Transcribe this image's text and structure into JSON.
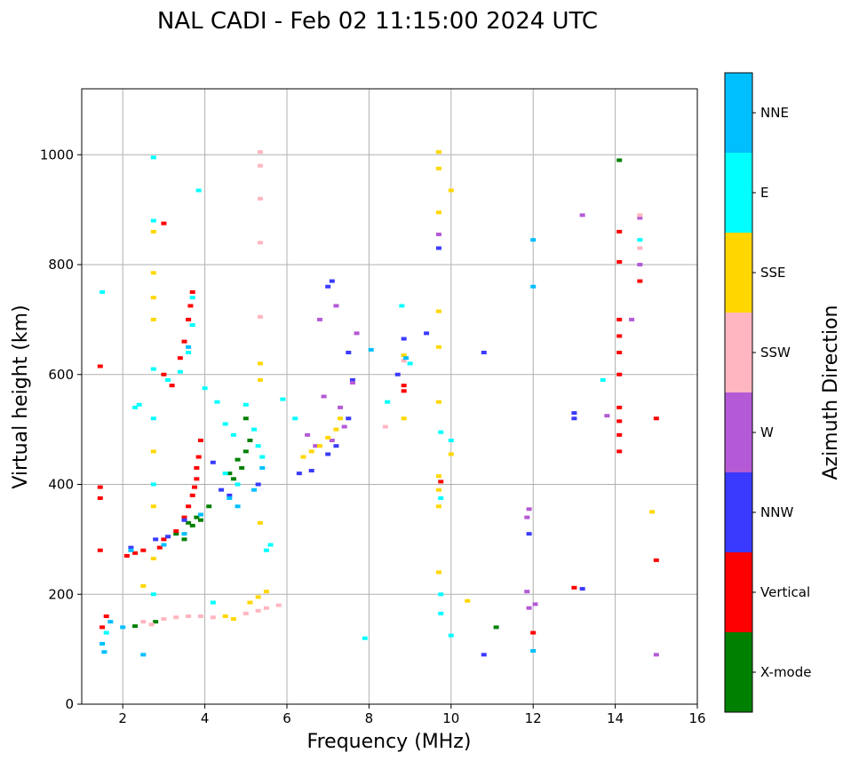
{
  "chart_data": {
    "type": "scatter",
    "title": "NAL CADI - Feb 02 11:15:00 2024 UTC",
    "xlabel": "Frequency (MHz)",
    "ylabel": "Virtual height (km)",
    "xlim": [
      1,
      16
    ],
    "ylim": [
      0,
      1120
    ],
    "xticks": [
      2,
      4,
      6,
      8,
      10,
      12,
      14,
      16
    ],
    "yticks": [
      0,
      200,
      400,
      600,
      800,
      1000
    ],
    "grid": true,
    "colorbar": {
      "label": "Azimuth Direction",
      "placement": "right",
      "categories": [
        {
          "name": "X-mode",
          "color": "#008000"
        },
        {
          "name": "Vertical",
          "color": "#ff0000"
        },
        {
          "name": "NNW",
          "color": "#3a3aff"
        },
        {
          "name": "W",
          "color": "#b45ad6"
        },
        {
          "name": "SSW",
          "color": "#ffb6c1"
        },
        {
          "name": "SSE",
          "color": "#ffd700"
        },
        {
          "name": "E",
          "color": "#00ffff"
        },
        {
          "name": "NNE",
          "color": "#00bfff"
        }
      ]
    },
    "series": [
      {
        "name": "X-mode",
        "points": [
          [
            3.6,
            330
          ],
          [
            3.7,
            325
          ],
          [
            3.8,
            340
          ],
          [
            3.9,
            335
          ],
          [
            4.1,
            360
          ],
          [
            4.6,
            420
          ],
          [
            4.7,
            410
          ],
          [
            4.8,
            445
          ],
          [
            4.9,
            430
          ],
          [
            5.0,
            460
          ],
          [
            5.1,
            480
          ],
          [
            5.0,
            520
          ],
          [
            2.8,
            150
          ],
          [
            2.3,
            142
          ],
          [
            3.5,
            300
          ],
          [
            3.3,
            310
          ],
          [
            11.1,
            140
          ],
          [
            14.1,
            990
          ]
        ]
      },
      {
        "name": "Vertical",
        "points": [
          [
            1.45,
            615
          ],
          [
            1.45,
            395
          ],
          [
            1.45,
            375
          ],
          [
            1.45,
            280
          ],
          [
            1.5,
            140
          ],
          [
            1.6,
            160
          ],
          [
            2.1,
            270
          ],
          [
            2.3,
            275
          ],
          [
            2.5,
            280
          ],
          [
            2.9,
            285
          ],
          [
            3.0,
            300
          ],
          [
            3.3,
            315
          ],
          [
            3.5,
            340
          ],
          [
            3.6,
            360
          ],
          [
            3.7,
            380
          ],
          [
            3.75,
            395
          ],
          [
            3.8,
            430
          ],
          [
            3.8,
            410
          ],
          [
            3.85,
            450
          ],
          [
            3.9,
            480
          ],
          [
            3.2,
            580
          ],
          [
            3.0,
            600
          ],
          [
            3.4,
            630
          ],
          [
            3.5,
            660
          ],
          [
            3.6,
            700
          ],
          [
            3.65,
            725
          ],
          [
            3.7,
            750
          ],
          [
            3.0,
            875
          ],
          [
            8.85,
            580
          ],
          [
            8.85,
            570
          ],
          [
            9.75,
            405
          ],
          [
            12.0,
            130
          ],
          [
            13.0,
            212
          ],
          [
            14.1,
            860
          ],
          [
            14.1,
            805
          ],
          [
            14.1,
            700
          ],
          [
            14.1,
            670
          ],
          [
            14.1,
            640
          ],
          [
            14.1,
            600
          ],
          [
            14.1,
            540
          ],
          [
            14.1,
            515
          ],
          [
            14.1,
            490
          ],
          [
            14.1,
            460
          ],
          [
            15.0,
            520
          ],
          [
            15.0,
            262
          ],
          [
            14.6,
            770
          ]
        ]
      },
      {
        "name": "NNW",
        "points": [
          [
            2.2,
            285
          ],
          [
            2.8,
            300
          ],
          [
            3.1,
            305
          ],
          [
            3.5,
            335
          ],
          [
            3.9,
            345
          ],
          [
            4.2,
            440
          ],
          [
            4.4,
            390
          ],
          [
            4.6,
            380
          ],
          [
            5.3,
            400
          ],
          [
            6.3,
            420
          ],
          [
            6.6,
            425
          ],
          [
            7.0,
            455
          ],
          [
            7.2,
            470
          ],
          [
            7.5,
            520
          ],
          [
            7.6,
            590
          ],
          [
            7.0,
            760
          ],
          [
            7.1,
            770
          ],
          [
            7.5,
            640
          ],
          [
            8.7,
            600
          ],
          [
            8.85,
            665
          ],
          [
            9.4,
            675
          ],
          [
            9.7,
            830
          ],
          [
            10.8,
            640
          ],
          [
            10.8,
            90
          ],
          [
            11.9,
            310
          ],
          [
            13.0,
            530
          ],
          [
            13.0,
            520
          ],
          [
            13.2,
            210
          ]
        ]
      },
      {
        "name": "W",
        "points": [
          [
            6.5,
            490
          ],
          [
            6.7,
            470
          ],
          [
            6.9,
            560
          ],
          [
            7.1,
            480
          ],
          [
            7.3,
            540
          ],
          [
            7.4,
            505
          ],
          [
            7.6,
            585
          ],
          [
            6.8,
            700
          ],
          [
            7.2,
            725
          ],
          [
            7.7,
            675
          ],
          [
            9.7,
            855
          ],
          [
            11.9,
            355
          ],
          [
            11.85,
            340
          ],
          [
            11.85,
            205
          ],
          [
            11.9,
            175
          ],
          [
            13.2,
            890
          ],
          [
            13.8,
            525
          ],
          [
            14.4,
            700
          ],
          [
            14.6,
            885
          ],
          [
            14.6,
            800
          ],
          [
            15.0,
            90
          ],
          [
            12.05,
            182
          ]
        ]
      },
      {
        "name": "SSW",
        "points": [
          [
            2.5,
            150
          ],
          [
            2.7,
            145
          ],
          [
            3.0,
            155
          ],
          [
            3.3,
            158
          ],
          [
            3.6,
            160
          ],
          [
            3.9,
            160
          ],
          [
            4.2,
            158
          ],
          [
            5.0,
            165
          ],
          [
            5.3,
            170
          ],
          [
            5.5,
            175
          ],
          [
            5.8,
            180
          ],
          [
            5.35,
            1005
          ],
          [
            5.35,
            980
          ],
          [
            5.35,
            920
          ],
          [
            5.35,
            840
          ],
          [
            5.35,
            705
          ],
          [
            8.4,
            505
          ],
          [
            8.85,
            625
          ],
          [
            14.6,
            890
          ],
          [
            14.6,
            830
          ]
        ]
      },
      {
        "name": "SSE",
        "points": [
          [
            2.5,
            215
          ],
          [
            2.75,
            860
          ],
          [
            2.75,
            785
          ],
          [
            2.75,
            740
          ],
          [
            2.75,
            700
          ],
          [
            2.75,
            460
          ],
          [
            2.75,
            360
          ],
          [
            2.75,
            265
          ],
          [
            4.5,
            160
          ],
          [
            4.7,
            155
          ],
          [
            5.1,
            185
          ],
          [
            5.3,
            195
          ],
          [
            5.5,
            205
          ],
          [
            5.35,
            620
          ],
          [
            5.35,
            590
          ],
          [
            5.35,
            330
          ],
          [
            6.4,
            450
          ],
          [
            6.6,
            460
          ],
          [
            6.8,
            470
          ],
          [
            7.0,
            485
          ],
          [
            7.2,
            500
          ],
          [
            7.3,
            520
          ],
          [
            8.85,
            520
          ],
          [
            8.85,
            635
          ],
          [
            9.7,
            1005
          ],
          [
            9.7,
            975
          ],
          [
            9.7,
            895
          ],
          [
            9.7,
            715
          ],
          [
            9.7,
            650
          ],
          [
            9.7,
            550
          ],
          [
            9.7,
            415
          ],
          [
            9.7,
            390
          ],
          [
            9.7,
            360
          ],
          [
            9.7,
            240
          ],
          [
            10.0,
            935
          ],
          [
            10.0,
            455
          ],
          [
            10.4,
            188
          ],
          [
            14.9,
            350
          ]
        ]
      },
      {
        "name": "E",
        "points": [
          [
            1.5,
            750
          ],
          [
            1.6,
            130
          ],
          [
            2.3,
            540
          ],
          [
            2.4,
            545
          ],
          [
            2.75,
            995
          ],
          [
            2.75,
            880
          ],
          [
            2.75,
            610
          ],
          [
            2.75,
            520
          ],
          [
            2.75,
            400
          ],
          [
            2.75,
            200
          ],
          [
            3.1,
            590
          ],
          [
            3.4,
            605
          ],
          [
            3.6,
            640
          ],
          [
            3.7,
            690
          ],
          [
            3.7,
            740
          ],
          [
            3.85,
            935
          ],
          [
            4.0,
            575
          ],
          [
            4.3,
            550
          ],
          [
            4.5,
            510
          ],
          [
            4.7,
            490
          ],
          [
            5.0,
            545
          ],
          [
            5.2,
            500
          ],
          [
            5.3,
            470
          ],
          [
            5.4,
            450
          ],
          [
            5.5,
            280
          ],
          [
            5.6,
            290
          ],
          [
            5.9,
            555
          ],
          [
            6.2,
            520
          ],
          [
            4.2,
            185
          ],
          [
            4.5,
            420
          ],
          [
            4.8,
            400
          ],
          [
            7.9,
            120
          ],
          [
            8.45,
            550
          ],
          [
            8.8,
            725
          ],
          [
            9.0,
            620
          ],
          [
            9.75,
            495
          ],
          [
            9.75,
            375
          ],
          [
            9.75,
            200
          ],
          [
            9.75,
            165
          ],
          [
            10.0,
            480
          ],
          [
            10.0,
            125
          ],
          [
            13.7,
            590
          ],
          [
            14.6,
            845
          ]
        ]
      },
      {
        "name": "NNE",
        "points": [
          [
            1.5,
            110
          ],
          [
            1.55,
            95
          ],
          [
            1.7,
            150
          ],
          [
            2.0,
            140
          ],
          [
            2.2,
            280
          ],
          [
            2.5,
            90
          ],
          [
            3.0,
            290
          ],
          [
            3.5,
            310
          ],
          [
            3.6,
            650
          ],
          [
            3.9,
            345
          ],
          [
            4.6,
            375
          ],
          [
            4.8,
            360
          ],
          [
            5.2,
            390
          ],
          [
            5.4,
            430
          ],
          [
            8.05,
            645
          ],
          [
            8.9,
            630
          ],
          [
            12.0,
            845
          ],
          [
            12.0,
            760
          ],
          [
            12.0,
            97
          ]
        ]
      }
    ]
  }
}
